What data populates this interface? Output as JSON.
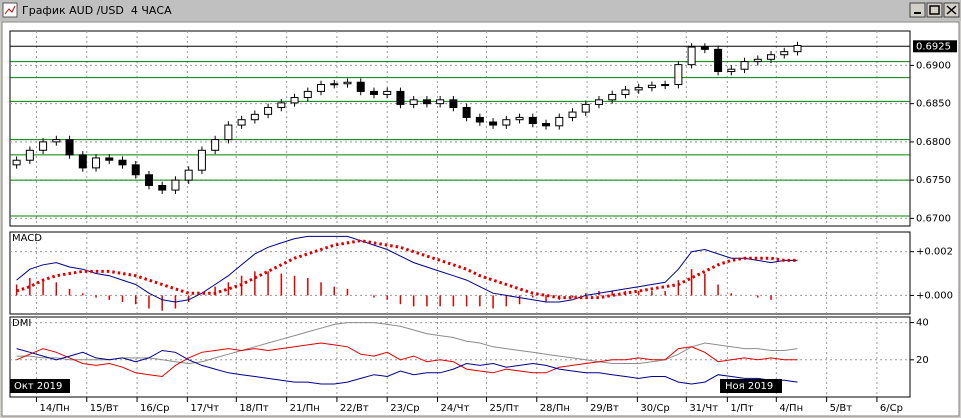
{
  "window": {
    "title": "График AUD /USD  4 ЧАСА"
  },
  "period_labels": [
    "Окт 2019",
    "Ноя 2019"
  ],
  "chart_data": [
    {
      "type": "candlestick",
      "open": [
        0.677,
        0.6776,
        0.6789,
        0.68,
        0.6803,
        0.6783,
        0.6766,
        0.6779,
        0.6776,
        0.677,
        0.6757,
        0.6743,
        0.6737,
        0.675,
        0.6763,
        0.6789,
        0.6803,
        0.6822,
        0.6829,
        0.6836,
        0.6845,
        0.6851,
        0.6858,
        0.6866,
        0.6875,
        0.6876,
        0.6878,
        0.6866,
        0.6862,
        0.6866,
        0.6849,
        0.6855,
        0.685,
        0.6855,
        0.6845,
        0.6832,
        0.6826,
        0.6822,
        0.6829,
        0.6832,
        0.6824,
        0.6821,
        0.6832,
        0.6839,
        0.6849,
        0.6855,
        0.6862,
        0.6868,
        0.6871,
        0.6874,
        0.6875,
        0.6901,
        0.6924,
        0.6921,
        0.6892,
        0.6895,
        0.6905,
        0.6908,
        0.6914,
        0.6918
      ],
      "high": [
        0.6781,
        0.6794,
        0.6805,
        0.6808,
        0.6808,
        0.6788,
        0.6784,
        0.6784,
        0.6781,
        0.6775,
        0.6762,
        0.6748,
        0.6755,
        0.6768,
        0.6794,
        0.6808,
        0.6827,
        0.6834,
        0.6841,
        0.685,
        0.6856,
        0.6863,
        0.6871,
        0.688,
        0.6881,
        0.6883,
        0.6883,
        0.6871,
        0.6871,
        0.6871,
        0.686,
        0.686,
        0.686,
        0.686,
        0.685,
        0.6837,
        0.6831,
        0.6834,
        0.6837,
        0.6837,
        0.6829,
        0.6837,
        0.6844,
        0.6854,
        0.686,
        0.6867,
        0.6873,
        0.6876,
        0.6879,
        0.688,
        0.6906,
        0.6929,
        0.6929,
        0.6926,
        0.69,
        0.691,
        0.6913,
        0.6919,
        0.6923,
        0.6931
      ],
      "low": [
        0.6765,
        0.6771,
        0.6784,
        0.6795,
        0.6778,
        0.6761,
        0.6761,
        0.6771,
        0.6765,
        0.6752,
        0.6738,
        0.6732,
        0.6732,
        0.6745,
        0.6758,
        0.6784,
        0.6798,
        0.6817,
        0.6824,
        0.6831,
        0.684,
        0.6846,
        0.6853,
        0.6861,
        0.687,
        0.6871,
        0.6861,
        0.6857,
        0.6857,
        0.6844,
        0.6844,
        0.6845,
        0.6845,
        0.684,
        0.6827,
        0.6821,
        0.6817,
        0.6817,
        0.6824,
        0.6819,
        0.6816,
        0.6816,
        0.6827,
        0.6834,
        0.6844,
        0.685,
        0.6857,
        0.6863,
        0.6866,
        0.6869,
        0.687,
        0.6896,
        0.6916,
        0.6887,
        0.6887,
        0.689,
        0.69,
        0.6903,
        0.6909,
        0.6913
      ],
      "close": [
        0.6776,
        0.6789,
        0.68,
        0.6803,
        0.6783,
        0.6766,
        0.6779,
        0.6776,
        0.677,
        0.6757,
        0.6743,
        0.6737,
        0.675,
        0.6763,
        0.6789,
        0.6803,
        0.6822,
        0.6829,
        0.6836,
        0.6845,
        0.6851,
        0.6858,
        0.6866,
        0.6875,
        0.6876,
        0.6878,
        0.6866,
        0.6862,
        0.6866,
        0.6849,
        0.6855,
        0.685,
        0.6855,
        0.6845,
        0.6832,
        0.6826,
        0.6822,
        0.6829,
        0.6832,
        0.6824,
        0.6821,
        0.6832,
        0.6839,
        0.6849,
        0.6855,
        0.6862,
        0.6868,
        0.6871,
        0.6874,
        0.6875,
        0.6901,
        0.6924,
        0.6921,
        0.6892,
        0.6895,
        0.6905,
        0.6908,
        0.6914,
        0.6918,
        0.6926
      ],
      "xlim": [
        -0.5,
        67.5
      ],
      "ylim": [
        0.669,
        0.6945
      ],
      "yticks": [
        {
          "value": 0.67,
          "label": "0.6700"
        },
        {
          "value": 0.675,
          "label": "0.6750"
        },
        {
          "value": 0.68,
          "label": "0.6800"
        },
        {
          "value": 0.685,
          "label": "0.6850"
        },
        {
          "value": 0.69,
          "label": "0.6900"
        }
      ],
      "last_price": 0.6925,
      "levels": [
        0.6905,
        0.6884,
        0.6853,
        0.6803,
        0.6783,
        0.675,
        0.6703
      ],
      "level_color": "#008000",
      "grid": true
    },
    {
      "type": "macd",
      "title": "MACD",
      "series": [
        {
          "kind": "bar",
          "color": "#e00000",
          "values": [
            0.0005,
            0.0008,
            0.0007,
            0.0006,
            0.0003,
            0.0001,
            -0.0001,
            -0.0002,
            -0.0003,
            -0.0004,
            -0.0006,
            -0.0007,
            -0.0006,
            -0.0003,
            0,
            0.0004,
            0.0006,
            0.0009,
            0.0011,
            0.0011,
            0.001,
            0.0009,
            0.0008,
            0.0006,
            0.0004,
            0.0003,
            0,
            -0.0001,
            -0.0002,
            -0.0004,
            -0.0005,
            -0.0005,
            -0.0005,
            -0.0005,
            -0.0005,
            -0.0005,
            -0.0006,
            -0.0005,
            -0.0004,
            -0.0001,
            -0.0003,
            -0.0002,
            -0.0001,
            0.0001,
            0.0002,
            0.0002,
            0.0002,
            0.0002,
            0.0002,
            0.0002,
            0.0007,
            0.0012,
            0.001,
            0.0005,
            0.0001,
            0,
            -0.0001,
            -0.0002,
            0,
            0
          ]
        },
        {
          "kind": "line",
          "color": "#00008b",
          "values": [
            0.0007,
            0.0012,
            0.0014,
            0.0015,
            0.0013,
            0.0012,
            0.001,
            0.0009,
            0.0007,
            0.0005,
            0.0001,
            -0.0002,
            -0.0003,
            -0.0002,
            0.0001,
            0.0005,
            0.0009,
            0.0014,
            0.0019,
            0.0022,
            0.0024,
            0.0026,
            0.0027,
            0.0027,
            0.0027,
            0.0027,
            0.0025,
            0.0023,
            0.0021,
            0.0018,
            0.0015,
            0.0013,
            0.0011,
            0.0009,
            0.0007,
            0.0004,
            0.0001,
            0,
            -0.0001,
            -0.0002,
            -0.0003,
            -0.0003,
            -0.0002,
            0,
            0.0001,
            0.0002,
            0.0003,
            0.0004,
            0.0005,
            0.0006,
            0.0012,
            0.002,
            0.0021,
            0.0019,
            0.0017,
            0.0017,
            0.0016,
            0.0015,
            0.0016,
            0.0016
          ]
        },
        {
          "kind": "dotted",
          "color": "#dd0000",
          "values": [
            0.0002,
            0.0004,
            0.0007,
            0.0009,
            0.001,
            0.0011,
            0.0011,
            0.0011,
            0.001,
            0.0009,
            0.0007,
            0.0005,
            0.0003,
            0.0001,
            0.0001,
            0.0001,
            0.0003,
            0.0005,
            0.0008,
            0.0011,
            0.0014,
            0.0017,
            0.0019,
            0.0021,
            0.0023,
            0.0024,
            0.0025,
            0.0024,
            0.0023,
            0.0022,
            0.002,
            0.0018,
            0.0016,
            0.0014,
            0.0012,
            0.0009,
            0.0007,
            0.0005,
            0.0003,
            0.0001,
            0,
            -0.0001,
            -0.0001,
            -0.0001,
            -0.0001,
            0,
            0.0001,
            0.0002,
            0.0003,
            0.0004,
            0.0005,
            0.0008,
            0.0011,
            0.0014,
            0.0016,
            0.0017,
            0.0017,
            0.0017,
            0.0016,
            0.0016
          ]
        }
      ],
      "xlim": [
        -0.5,
        67.5
      ],
      "ylim": [
        -0.00085,
        0.0029
      ],
      "yticks": [
        {
          "value": 0,
          "label": "+0.000"
        },
        {
          "value": 0.002,
          "label": "+0.002"
        }
      ],
      "grid": true
    },
    {
      "type": "line",
      "title": "DMI",
      "series": [
        {
          "color": "#8c8c8c",
          "values": [
            22,
            22,
            21,
            21,
            20,
            20,
            20,
            20,
            21,
            21,
            21,
            20,
            19,
            18,
            19,
            21,
            23,
            25,
            27,
            29,
            31,
            33,
            35,
            37,
            39,
            40,
            40,
            40,
            39,
            38,
            36,
            34,
            33,
            32,
            30,
            29,
            27,
            26,
            25,
            24,
            23,
            22,
            21,
            20,
            19,
            18,
            18,
            18,
            19,
            20,
            23,
            27,
            29,
            28,
            27,
            26,
            26,
            25,
            25,
            26
          ]
        },
        {
          "color": "#e00000",
          "values": [
            20,
            23,
            26,
            24,
            21,
            18,
            17,
            18,
            16,
            13,
            12,
            11,
            17,
            21,
            24,
            25,
            26,
            25,
            26,
            25,
            26,
            27,
            28,
            29,
            28,
            27,
            23,
            22,
            24,
            20,
            22,
            19,
            20,
            19,
            15,
            14,
            13,
            15,
            14,
            13,
            13,
            16,
            17,
            18,
            19,
            20,
            20,
            21,
            20,
            20,
            26,
            27,
            24,
            19,
            20,
            21,
            20,
            21,
            20,
            20
          ]
        },
        {
          "color": "#00008b",
          "values": [
            26,
            24,
            22,
            20,
            22,
            24,
            21,
            20,
            21,
            19,
            21,
            25,
            24,
            20,
            17,
            15,
            13,
            12,
            11,
            10,
            9,
            8,
            8,
            7,
            7,
            8,
            10,
            12,
            11,
            14,
            12,
            13,
            13,
            15,
            18,
            17,
            18,
            16,
            17,
            18,
            17,
            15,
            14,
            13,
            13,
            12,
            11,
            10,
            11,
            11,
            8,
            7,
            8,
            12,
            11,
            10,
            10,
            9,
            9,
            8
          ]
        }
      ],
      "xlim": [
        -0.5,
        67.5
      ],
      "ylim": [
        0,
        43
      ],
      "yticks": [
        20,
        40
      ],
      "xticks": [
        {
          "value": 1.5,
          "label": "14/Пн"
        },
        {
          "value": 5.3,
          "label": "15/Вт"
        },
        {
          "value": 9.1,
          "label": "16/Ср"
        },
        {
          "value": 12.9,
          "label": "17/Чт"
        },
        {
          "value": 16.6,
          "label": "18/Пт"
        },
        {
          "value": 20.4,
          "label": "21/Пн"
        },
        {
          "value": 24.2,
          "label": "22/Вт"
        },
        {
          "value": 28,
          "label": "23/Ср"
        },
        {
          "value": 31.8,
          "label": "24/Чт"
        },
        {
          "value": 35.5,
          "label": "25/Пт"
        },
        {
          "value": 39.3,
          "label": "28/Пн"
        },
        {
          "value": 43.1,
          "label": "29/Вт"
        },
        {
          "value": 46.9,
          "label": "30/Ср"
        },
        {
          "value": 50.6,
          "label": "31/Чт"
        },
        {
          "value": 53.7,
          "label": "1/Пт"
        },
        {
          "value": 57.4,
          "label": "4/Пн"
        },
        {
          "value": 61.2,
          "label": "5/Вт"
        },
        {
          "value": 65,
          "label": "6/Ср"
        }
      ],
      "grid": true
    }
  ]
}
